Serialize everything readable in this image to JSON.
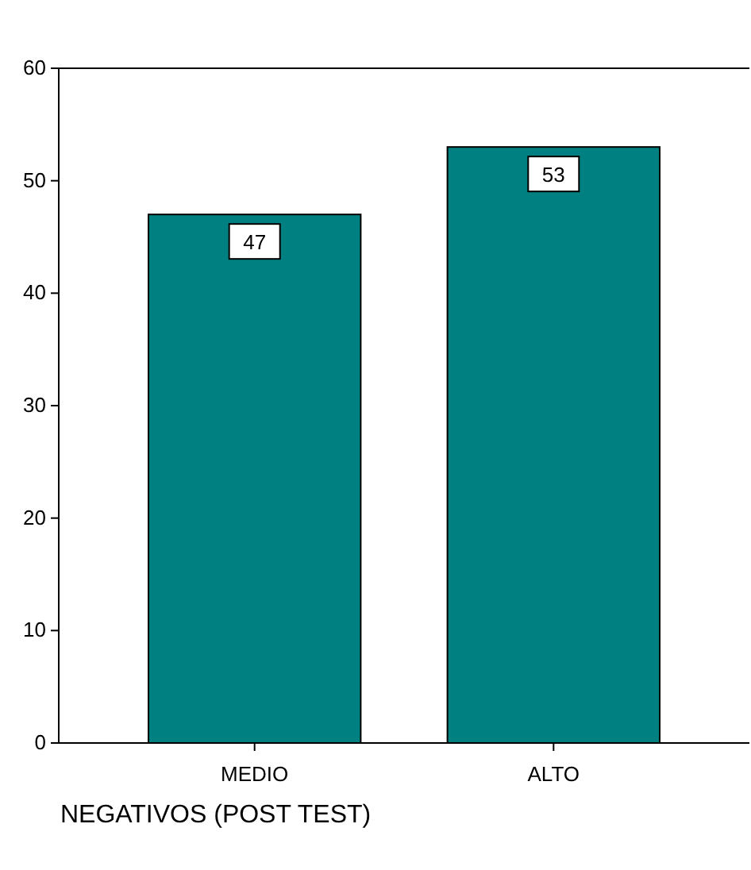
{
  "chart_data": {
    "type": "bar",
    "xlabel": "NEGATIVOS (POST TEST)",
    "categories": [
      "MEDIO",
      "ALTO"
    ],
    "values": [
      47,
      53
    ],
    "color": "#008080",
    "ylim": [
      0,
      60
    ],
    "yticks": [
      0,
      10,
      20,
      30,
      40,
      50,
      60
    ],
    "data_labels": true,
    "grid": false
  }
}
